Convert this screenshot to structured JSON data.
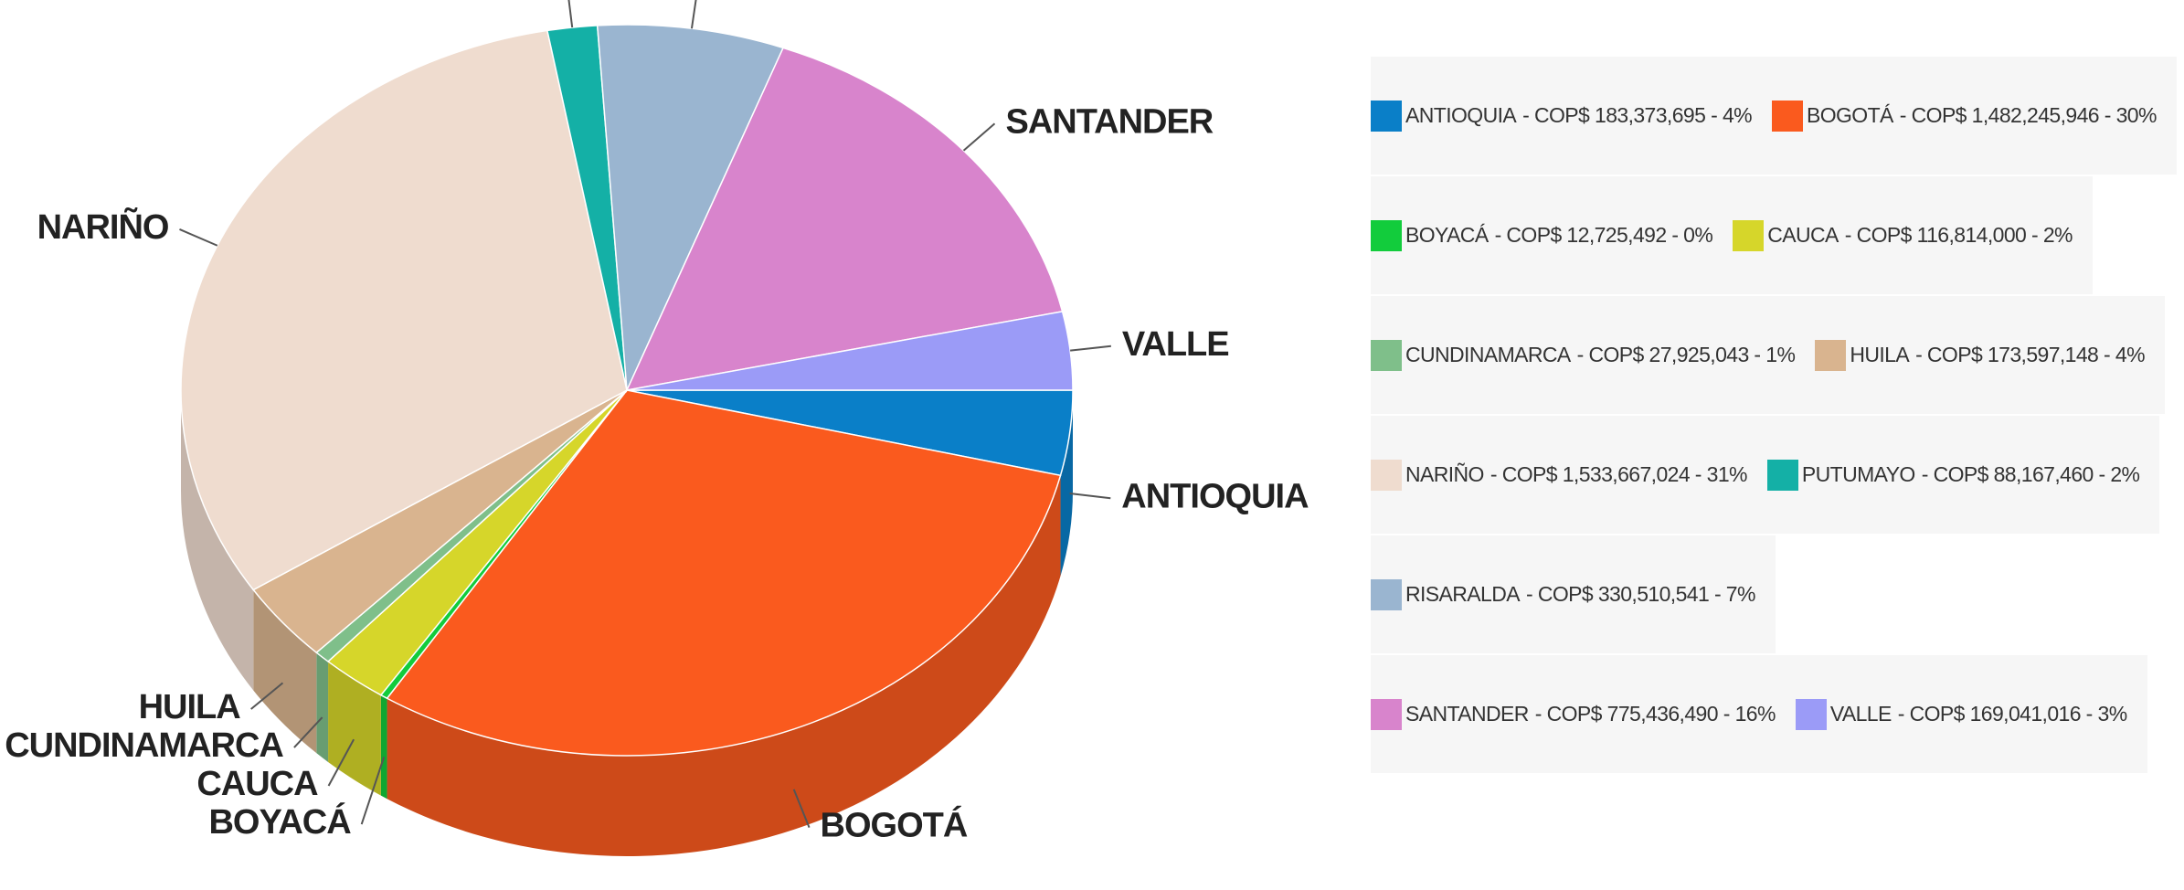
{
  "chart_data": {
    "type": "pie",
    "categories": [
      "ANTIOQUIA",
      "BOGOTÁ",
      "BOYACÁ",
      "CAUCA",
      "CUNDINAMARCA",
      "HUILA",
      "NARIÑO",
      "PUTUMAYO",
      "RISARALDA",
      "SANTANDER",
      "VALLE"
    ],
    "values": [
      183373695,
      1482245946,
      12725492,
      116814000,
      27925043,
      173597148,
      1533667024,
      88167460,
      330510541,
      775436490,
      169041016
    ],
    "value_labels": [
      "- COP$ 183,373,695 - 4%",
      "- COP$ 1,482,245,946 - 30%",
      "- COP$ 12,725,492 - 0%",
      "- COP$ 116,814,000 - 2%",
      "- COP$ 27,925,043 - 1%",
      "- COP$ 173,597,148 - 4%",
      "- COP$ 1,533,667,024 - 31%",
      "- COP$ 88,167,460 - 2%",
      "- COP$ 330,510,541 - 7%",
      "- COP$ 775,436,490 - 16%",
      "- COP$ 169,041,016 - 3%"
    ],
    "colors": [
      "#0a7fc8",
      "#fa5a1e",
      "#12cc3c",
      "#d6d62a",
      "#7fbf8a",
      "#d9b48f",
      "#efdccf",
      "#14b0a6",
      "#9ab5d0",
      "#d884cc",
      "#9b9bf7"
    ],
    "legend": "right"
  }
}
